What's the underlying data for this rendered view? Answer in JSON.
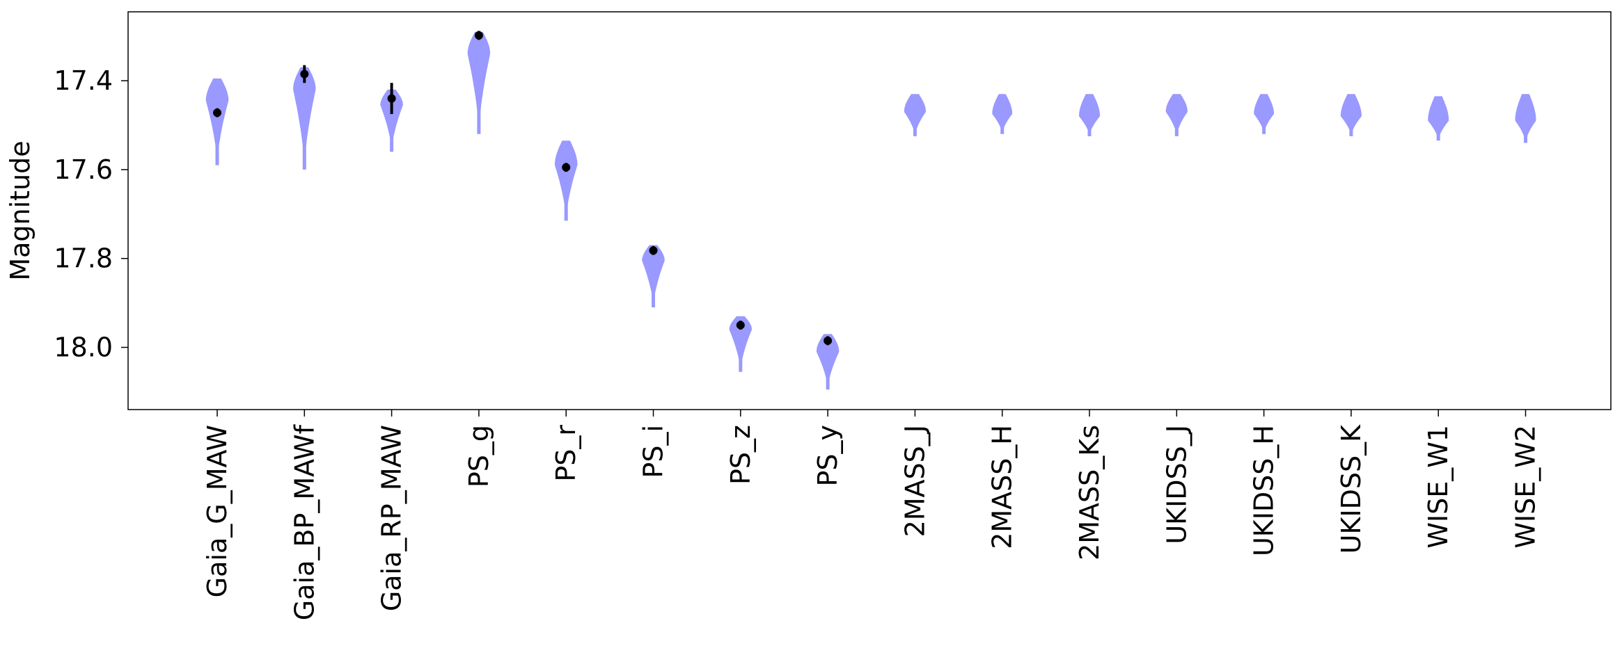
{
  "chart_data": {
    "type": "violin",
    "title": "",
    "xlabel": "",
    "ylabel": "Magnitude",
    "y_inverted": true,
    "ylim": [
      18.14,
      17.245
    ],
    "yticks": [
      17.4,
      17.6,
      17.8,
      18.0
    ],
    "ytick_labels": [
      "17.4",
      "17.6",
      "17.8",
      "18.0"
    ],
    "violin_color": "#9999ff",
    "marker_color": "#000000",
    "grid": false,
    "categories": [
      "Gaia_G_MAW",
      "Gaia_BP_MAWf",
      "Gaia_RP_MAW",
      "PS_g",
      "PS_r",
      "PS_i",
      "PS_z",
      "PS_y",
      "2MASS_J",
      "2MASS_H",
      "2MASS_Ks",
      "UKIDSS_J",
      "UKIDSS_H",
      "UKIDSS_K",
      "WISE_W1",
      "WISE_W2"
    ],
    "violins": [
      {
        "name": "Gaia_G_MAW",
        "min": 17.395,
        "mode": 17.445,
        "max": 17.59,
        "width": 0.26,
        "point": 17.472,
        "err": 0.01
      },
      {
        "name": "Gaia_BP_MAWf",
        "min": 17.37,
        "mode": 17.42,
        "max": 17.6,
        "width": 0.26,
        "point": 17.385,
        "err": 0.02
      },
      {
        "name": "Gaia_RP_MAW",
        "min": 17.42,
        "mode": 17.455,
        "max": 17.56,
        "width": 0.26,
        "point": 17.44,
        "err": 0.035
      },
      {
        "name": "PS_g",
        "min": 17.29,
        "mode": 17.34,
        "max": 17.52,
        "width": 0.26,
        "point": 17.298,
        "err": 0.01
      },
      {
        "name": "PS_r",
        "min": 17.535,
        "mode": 17.59,
        "max": 17.715,
        "width": 0.26,
        "point": 17.595,
        "err": 0.01
      },
      {
        "name": "PS_i",
        "min": 17.77,
        "mode": 17.805,
        "max": 17.91,
        "width": 0.26,
        "point": 17.782,
        "err": 0.01
      },
      {
        "name": "PS_z",
        "min": 17.93,
        "mode": 17.96,
        "max": 18.055,
        "width": 0.26,
        "point": 17.95,
        "err": 0.01
      },
      {
        "name": "PS_y",
        "min": 17.97,
        "mode": 18.01,
        "max": 18.095,
        "width": 0.26,
        "point": 17.985,
        "err": 0.01
      },
      {
        "name": "2MASS_J",
        "min": 17.43,
        "mode": 17.47,
        "max": 17.525,
        "width": 0.25
      },
      {
        "name": "2MASS_H",
        "min": 17.43,
        "mode": 17.475,
        "max": 17.52,
        "width": 0.23
      },
      {
        "name": "2MASS_Ks",
        "min": 17.43,
        "mode": 17.48,
        "max": 17.525,
        "width": 0.24
      },
      {
        "name": "UKIDSS_J",
        "min": 17.43,
        "mode": 17.47,
        "max": 17.525,
        "width": 0.25
      },
      {
        "name": "UKIDSS_H",
        "min": 17.43,
        "mode": 17.475,
        "max": 17.52,
        "width": 0.23
      },
      {
        "name": "UKIDSS_K",
        "min": 17.43,
        "mode": 17.48,
        "max": 17.525,
        "width": 0.24
      },
      {
        "name": "WISE_W1",
        "min": 17.435,
        "mode": 17.49,
        "max": 17.535,
        "width": 0.24
      },
      {
        "name": "WISE_W2",
        "min": 17.43,
        "mode": 17.49,
        "max": 17.54,
        "width": 0.24
      }
    ]
  }
}
